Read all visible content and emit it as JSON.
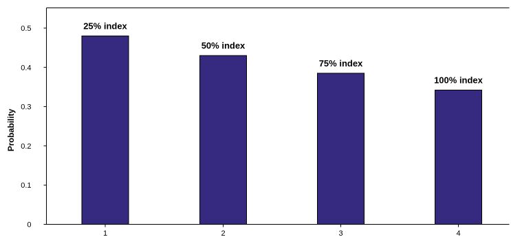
{
  "chart_data": {
    "type": "bar",
    "categories": [
      "1",
      "2",
      "3",
      "4"
    ],
    "values": [
      0.48,
      0.43,
      0.385,
      0.342
    ],
    "bar_labels": [
      "25% index",
      "50% index",
      "75% index",
      "100% index"
    ],
    "title": "",
    "xlabel": "",
    "ylabel": "Probability",
    "ylim": [
      0,
      0.55
    ],
    "yticks": [
      "0",
      "0.1",
      "0.2",
      "0.3",
      "0.4",
      "0.5"
    ],
    "grid": false,
    "legend": "none",
    "bar_color": "#352a80"
  }
}
